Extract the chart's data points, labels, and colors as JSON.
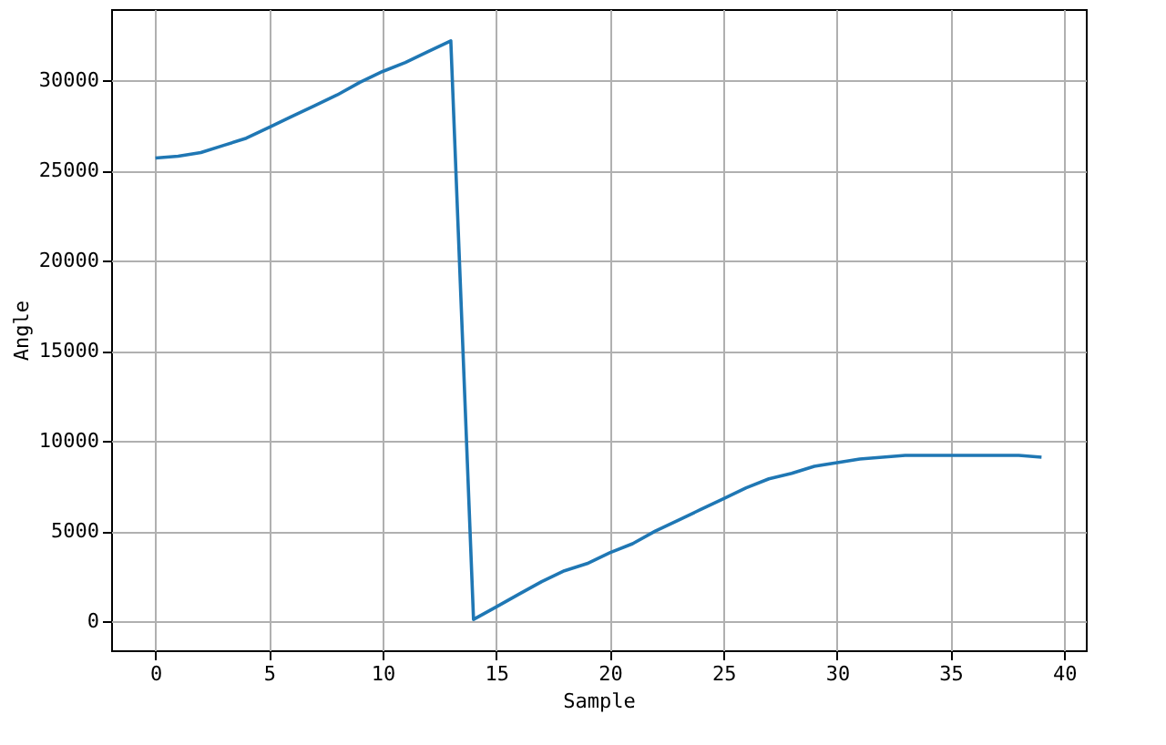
{
  "chart_data": {
    "type": "line",
    "xlabel": "Sample",
    "ylabel": "Angle",
    "x": [
      0,
      1,
      2,
      3,
      4,
      5,
      6,
      7,
      8,
      9,
      10,
      11,
      12,
      13,
      14,
      15,
      16,
      17,
      18,
      19,
      20,
      21,
      22,
      23,
      24,
      25,
      26,
      27,
      28,
      29,
      30,
      31,
      32,
      33,
      34,
      35,
      36,
      37,
      38,
      39
    ],
    "series": [
      {
        "color": "#1f77b4",
        "values": [
          25700,
          25800,
          26000,
          26400,
          26800,
          27400,
          28000,
          28600,
          29200,
          29900,
          30500,
          31000,
          31600,
          32200,
          100,
          800,
          1500,
          2200,
          2800,
          3200,
          3800,
          4300,
          5000,
          5600,
          6200,
          6800,
          7400,
          7900,
          8200,
          8600,
          8800,
          9000,
          9100,
          9200,
          9200,
          9200,
          9200,
          9200,
          9200,
          9100
        ]
      }
    ],
    "xlim": [
      -1.95,
      40.95
    ],
    "ylim": [
      -1610,
      33960
    ],
    "xticks": [
      0,
      5,
      10,
      15,
      20,
      25,
      30,
      35,
      40
    ],
    "yticks": [
      0,
      5000,
      10000,
      15000,
      20000,
      25000,
      30000
    ],
    "grid": true,
    "marker": "none",
    "line_style": "solid"
  }
}
